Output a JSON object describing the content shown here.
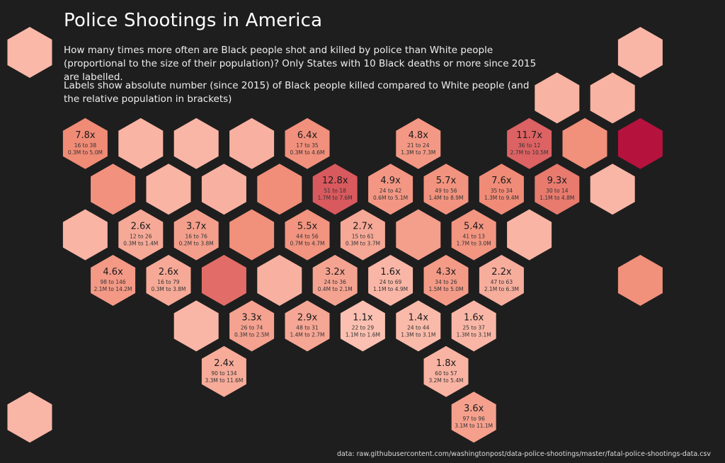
{
  "header": {
    "title": "Police Shootings in America",
    "subtitle": "How many times more often are Black people shot and killed by police than White people (proportional to the size of their population)? Only States with 10 Black deaths or more since 2015  are labelled.",
    "label_note": "Labels show absolute number (since 2015) of Black people killed compared  to White people (and the relative population in brackets)"
  },
  "footer": {
    "source": "data: raw.githubusercontent.com/washingtonpost/data-police-shootings/master/fatal-police-shootings-data.csv"
  },
  "colors": {
    "background": "#1e1e1e",
    "scale_low": "#fcc3b4",
    "scale_mid": "#f08a75",
    "scale_high": "#b5123e"
  },
  "chart_data": {
    "type": "hex-tile map",
    "title": "Police Shootings in America",
    "metric": "ratio of Black to White people shot and killed by police, adjusted for population",
    "unlabeled_states_note": "States with fewer than 10 Black deaths since 2015 are shown without labels",
    "tiles": [
      {
        "row": 0,
        "col": 0,
        "ratio": 1.5,
        "label": null
      },
      {
        "row": 0,
        "col": 11,
        "ratio": 1.6,
        "label": null
      },
      {
        "row": 1,
        "col": 9.5,
        "ratio": 1.8,
        "label": null
      },
      {
        "row": 1,
        "col": 10.5,
        "ratio": 1.8,
        "label": null
      },
      {
        "row": 2,
        "col": 1,
        "ratio": 7.8,
        "label": "7.8x",
        "counts": "16 to 38",
        "population": "0.3M to 5.0M"
      },
      {
        "row": 2,
        "col": 2,
        "ratio": 1.7,
        "label": null
      },
      {
        "row": 2,
        "col": 3,
        "ratio": 1.6,
        "label": null
      },
      {
        "row": 2,
        "col": 4,
        "ratio": 1.9,
        "label": null
      },
      {
        "row": 2,
        "col": 5,
        "ratio": 6.4,
        "label": "6.4x",
        "counts": "17 to 35",
        "population": "0.3M to 4.6M"
      },
      {
        "row": 2,
        "col": 7,
        "ratio": 4.8,
        "label": "4.8x",
        "counts": "21 to 24",
        "population": "1.3M to 7.3M"
      },
      {
        "row": 2,
        "col": 9,
        "ratio": 11.7,
        "label": "11.7x",
        "counts": "36 to 12",
        "population": "2.7M to 10.5M"
      },
      {
        "row": 2,
        "col": 10,
        "ratio": 6.5,
        "label": null
      },
      {
        "row": 2,
        "col": 11,
        "ratio": 25.0,
        "label": null
      },
      {
        "row": 3,
        "col": 1.5,
        "ratio": 6.0,
        "label": null
      },
      {
        "row": 3,
        "col": 2.5,
        "ratio": 1.7,
        "label": null
      },
      {
        "row": 3,
        "col": 3.5,
        "ratio": 1.9,
        "label": null
      },
      {
        "row": 3,
        "col": 4.5,
        "ratio": 7.0,
        "label": null
      },
      {
        "row": 3,
        "col": 5.5,
        "ratio": 12.8,
        "label": "12.8x",
        "counts": "51 to 18",
        "population": "1.7M to 7.6M"
      },
      {
        "row": 3,
        "col": 6.5,
        "ratio": 4.9,
        "label": "4.9x",
        "counts": "24 to 42",
        "population": "0.6M to 5.1M"
      },
      {
        "row": 3,
        "col": 7.5,
        "ratio": 5.7,
        "label": "5.7x",
        "counts": "49 to 56",
        "population": "1.4M to 8.9M"
      },
      {
        "row": 3,
        "col": 8.5,
        "ratio": 7.6,
        "label": "7.6x",
        "counts": "35 to 34",
        "population": "1.3M to 9.4M"
      },
      {
        "row": 3,
        "col": 9.5,
        "ratio": 9.3,
        "label": "9.3x",
        "counts": "30 to 14",
        "population": "1.1M to 4.8M"
      },
      {
        "row": 3,
        "col": 10.5,
        "ratio": 1.6,
        "label": null
      },
      {
        "row": 4,
        "col": 1,
        "ratio": 1.7,
        "label": null
      },
      {
        "row": 4,
        "col": 2,
        "ratio": 2.6,
        "label": "2.6x",
        "counts": "12 to 26",
        "population": "0.3M to 1.4M"
      },
      {
        "row": 4,
        "col": 3,
        "ratio": 3.7,
        "label": "3.7x",
        "counts": "16 to 76",
        "population": "0.2M to 3.8M"
      },
      {
        "row": 4,
        "col": 4,
        "ratio": 6.5,
        "label": null
      },
      {
        "row": 4,
        "col": 5,
        "ratio": 5.5,
        "label": "5.5x",
        "counts": "44 to 56",
        "population": "0.7M to 4.7M"
      },
      {
        "row": 4,
        "col": 6,
        "ratio": 2.7,
        "label": "2.7x",
        "counts": "15 to 61",
        "population": "0.3M to 3.7M"
      },
      {
        "row": 4,
        "col": 7,
        "ratio": 3.8,
        "label": null
      },
      {
        "row": 4,
        "col": 8,
        "ratio": 5.4,
        "label": "5.4x",
        "counts": "41 to 13",
        "population": "1.7M to 3.0M"
      },
      {
        "row": 4,
        "col": 9,
        "ratio": 1.7,
        "label": null
      },
      {
        "row": 5,
        "col": 1.5,
        "ratio": 4.6,
        "label": "4.6x",
        "counts": "98 to 146",
        "population": "2.1M to 14.2M"
      },
      {
        "row": 5,
        "col": 2.5,
        "ratio": 2.6,
        "label": "2.6x",
        "counts": "16 to 79",
        "population": "0.3M to 3.8M"
      },
      {
        "row": 5,
        "col": 3.5,
        "ratio": 10.5,
        "label": null
      },
      {
        "row": 5,
        "col": 4.5,
        "ratio": 1.9,
        "label": null
      },
      {
        "row": 5,
        "col": 5.5,
        "ratio": 3.2,
        "label": "3.2x",
        "counts": "24 to 36",
        "population": "0.4M to 2.1M"
      },
      {
        "row": 5,
        "col": 6.5,
        "ratio": 1.6,
        "label": "1.6x",
        "counts": "24 to 69",
        "population": "1.1M to 4.9M"
      },
      {
        "row": 5,
        "col": 7.5,
        "ratio": 4.3,
        "label": "4.3x",
        "counts": "34 to 26",
        "population": "1.5M to 5.0M"
      },
      {
        "row": 5,
        "col": 8.5,
        "ratio": 2.2,
        "label": "2.2x",
        "counts": "47 to 63",
        "population": "2.1M to 6.3M"
      },
      {
        "row": 5,
        "col": 11,
        "ratio": 6.5,
        "label": null
      },
      {
        "row": 6,
        "col": 3,
        "ratio": 1.6,
        "label": null
      },
      {
        "row": 6,
        "col": 4,
        "ratio": 3.3,
        "label": "3.3x",
        "counts": "26 to 74",
        "population": "0.3M to 2.5M"
      },
      {
        "row": 6,
        "col": 5,
        "ratio": 2.9,
        "label": "2.9x",
        "counts": "48 to 31",
        "population": "1.4M to 2.7M"
      },
      {
        "row": 6,
        "col": 6,
        "ratio": 1.1,
        "label": "1.1x",
        "counts": "22 to 29",
        "population": "1.1M to 1.6M"
      },
      {
        "row": 6,
        "col": 7,
        "ratio": 1.4,
        "label": "1.4x",
        "counts": "24 to 44",
        "population": "1.3M to 3.1M"
      },
      {
        "row": 6,
        "col": 8,
        "ratio": 1.6,
        "label": "1.6x",
        "counts": "25 to 37",
        "population": "1.3M to 3.1M"
      },
      {
        "row": 7,
        "col": 3.5,
        "ratio": 2.4,
        "label": "2.4x",
        "counts": "90 to 134",
        "population": "3.3M to 11.6M"
      },
      {
        "row": 7,
        "col": 7.5,
        "ratio": 1.8,
        "label": "1.8x",
        "counts": "60 to 57",
        "population": "3.2M to 5.4M"
      },
      {
        "row": 8,
        "col": 0,
        "ratio": 1.6,
        "label": null
      },
      {
        "row": 8,
        "col": 8,
        "ratio": 3.6,
        "label": "3.6x",
        "counts": "97 to 96",
        "population": "3.1M to 11.1M"
      }
    ]
  }
}
